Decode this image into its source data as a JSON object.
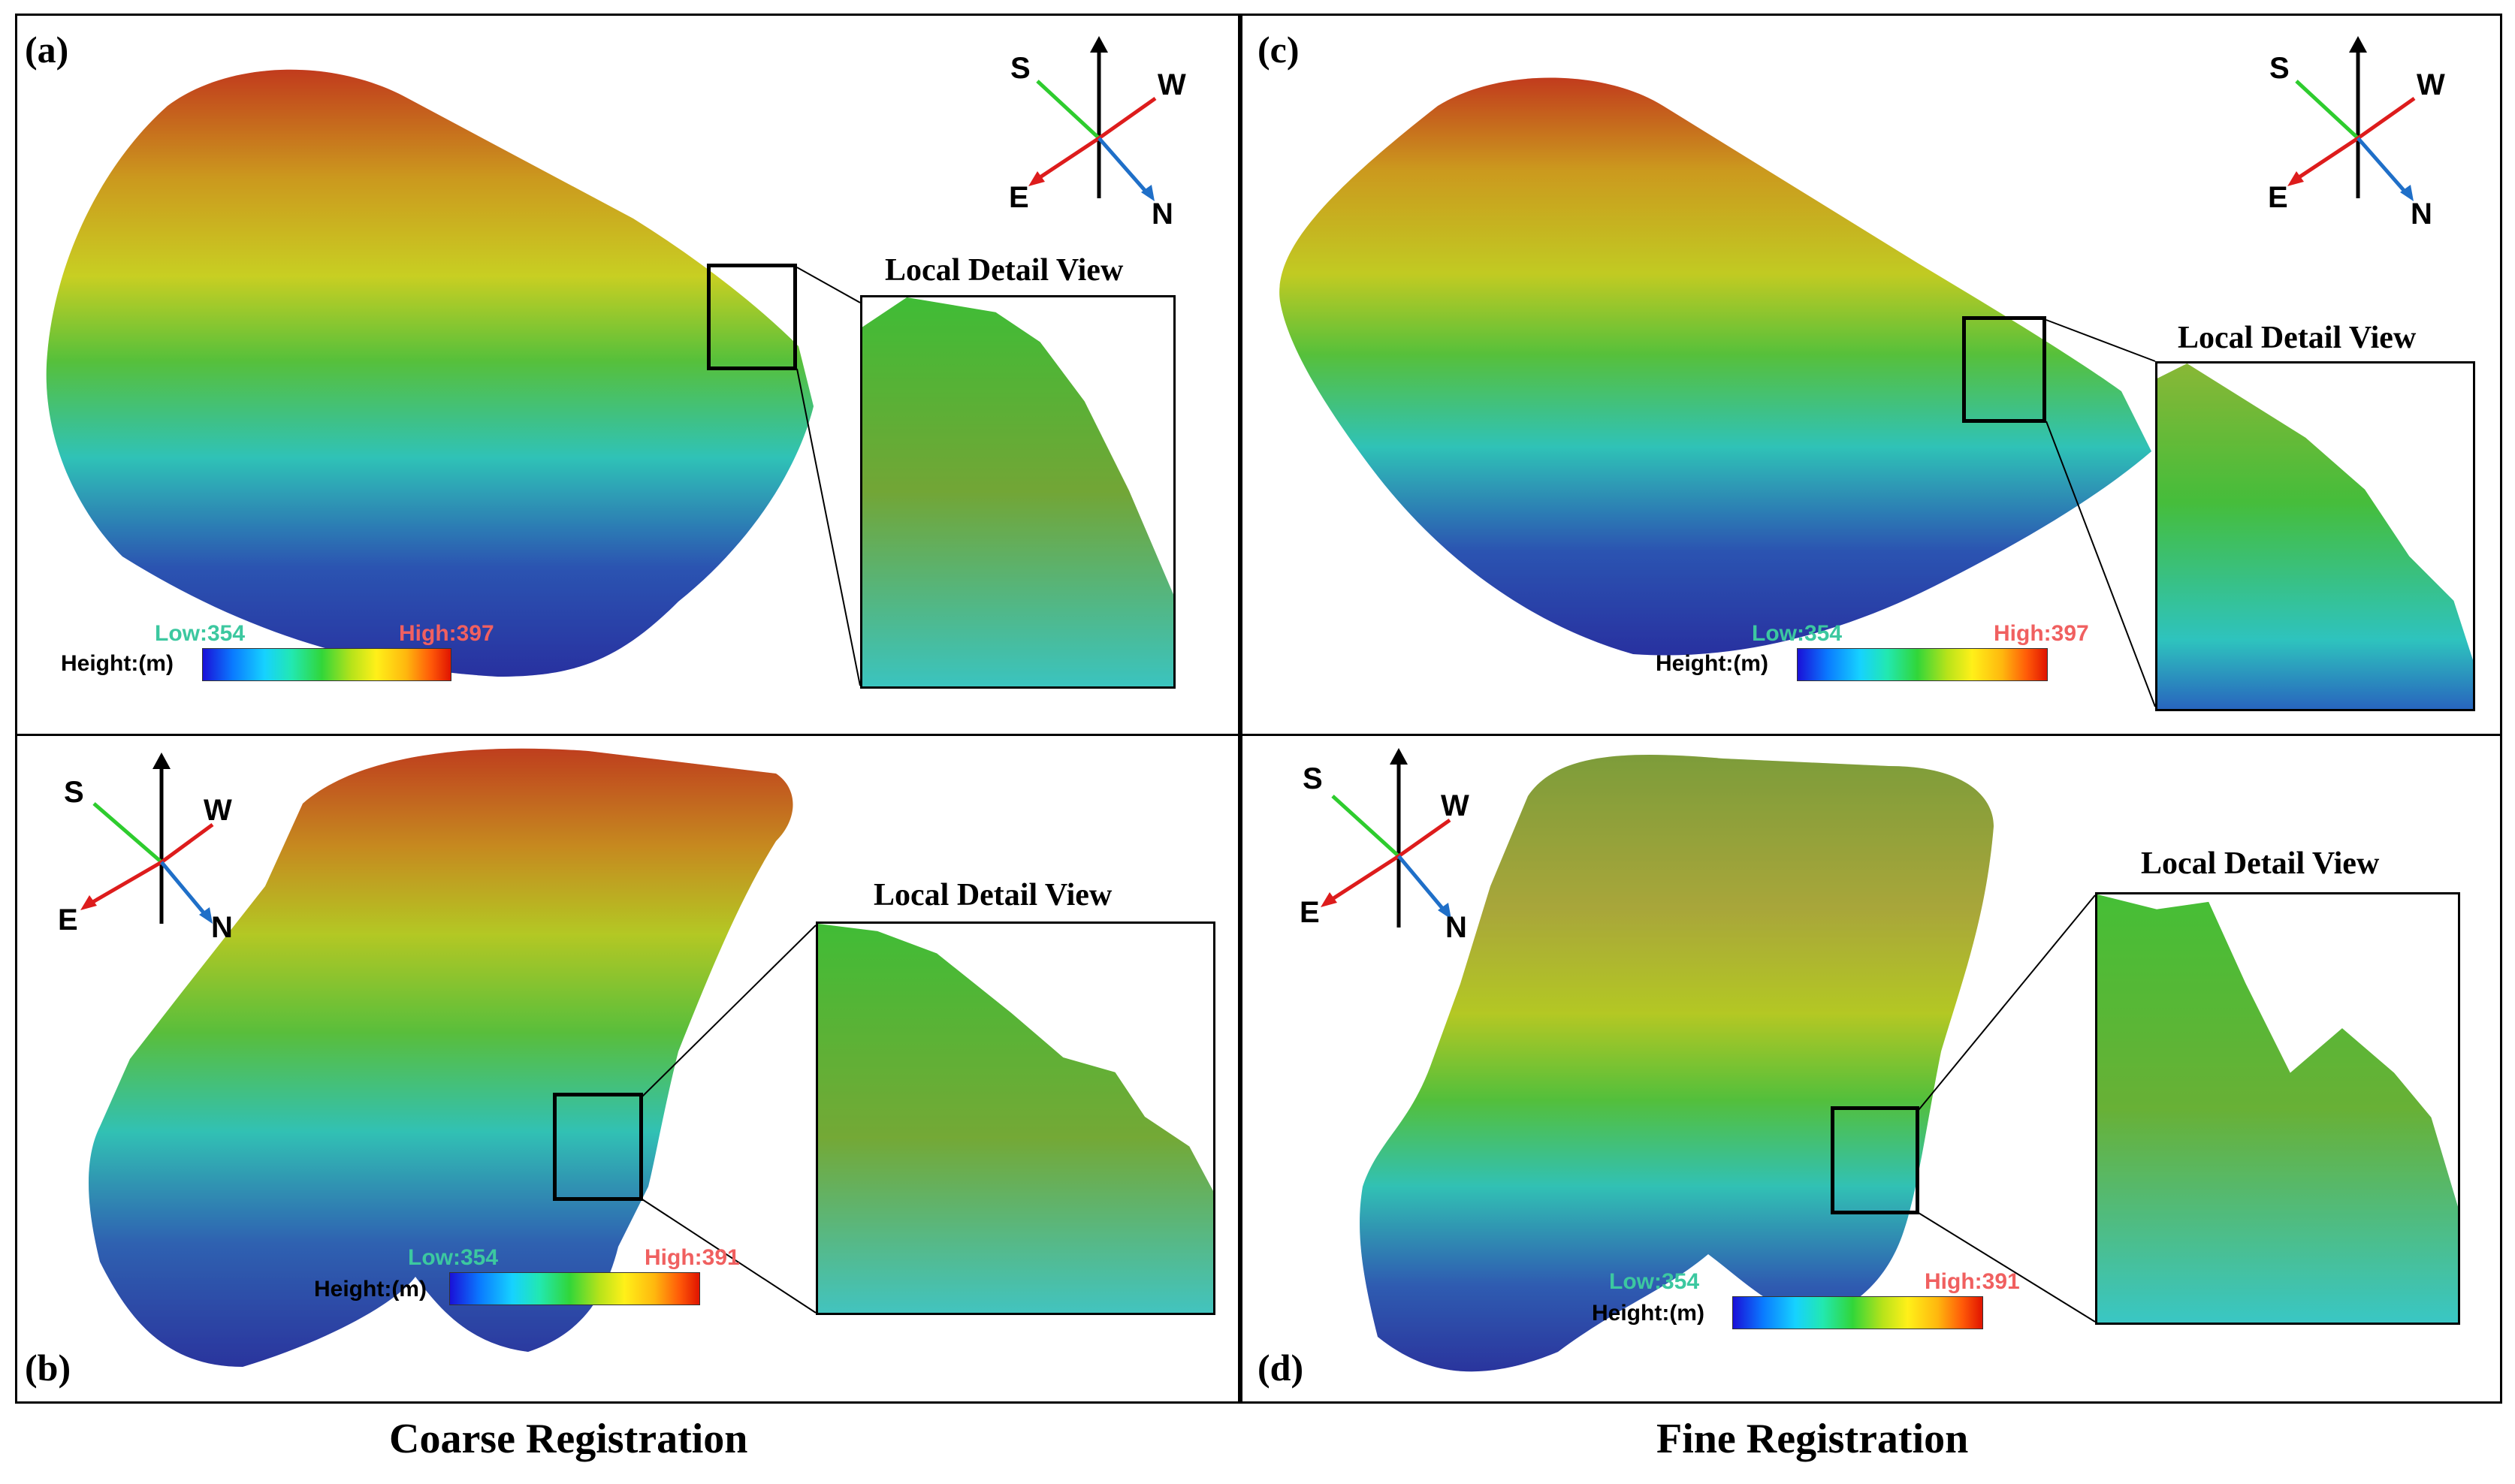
{
  "panels": {
    "a": {
      "label": "(a)",
      "detail_title": "Local Detail View",
      "low": "Low:354",
      "high": "High:397",
      "ylabel": "Height:(m)"
    },
    "b": {
      "label": "(b)",
      "detail_title": "Local Detail View",
      "low": "Low:354",
      "high": "High:391",
      "ylabel": "Height:(m)"
    },
    "c": {
      "label": "(c)",
      "detail_title": "Local Detail View",
      "low": "Low:354",
      "high": "High:397",
      "ylabel": "Height:(m)"
    },
    "d": {
      "label": "(d)",
      "detail_title": "Local Detail View",
      "low": "Low:354",
      "high": "High:391",
      "ylabel": "Height:(m)"
    }
  },
  "compass": {
    "s": "S",
    "w": "W",
    "e": "E",
    "n": "N"
  },
  "compass_colors": {
    "s": "#2ecc2e",
    "e": "#dd1c1c",
    "n": "#1f6fc8",
    "up": "#000000"
  },
  "legend_colors": {
    "low": "#3cc8a0",
    "high": "#f06060"
  },
  "captions": {
    "left": "Coarse Registration",
    "right": "Fine Registration"
  }
}
